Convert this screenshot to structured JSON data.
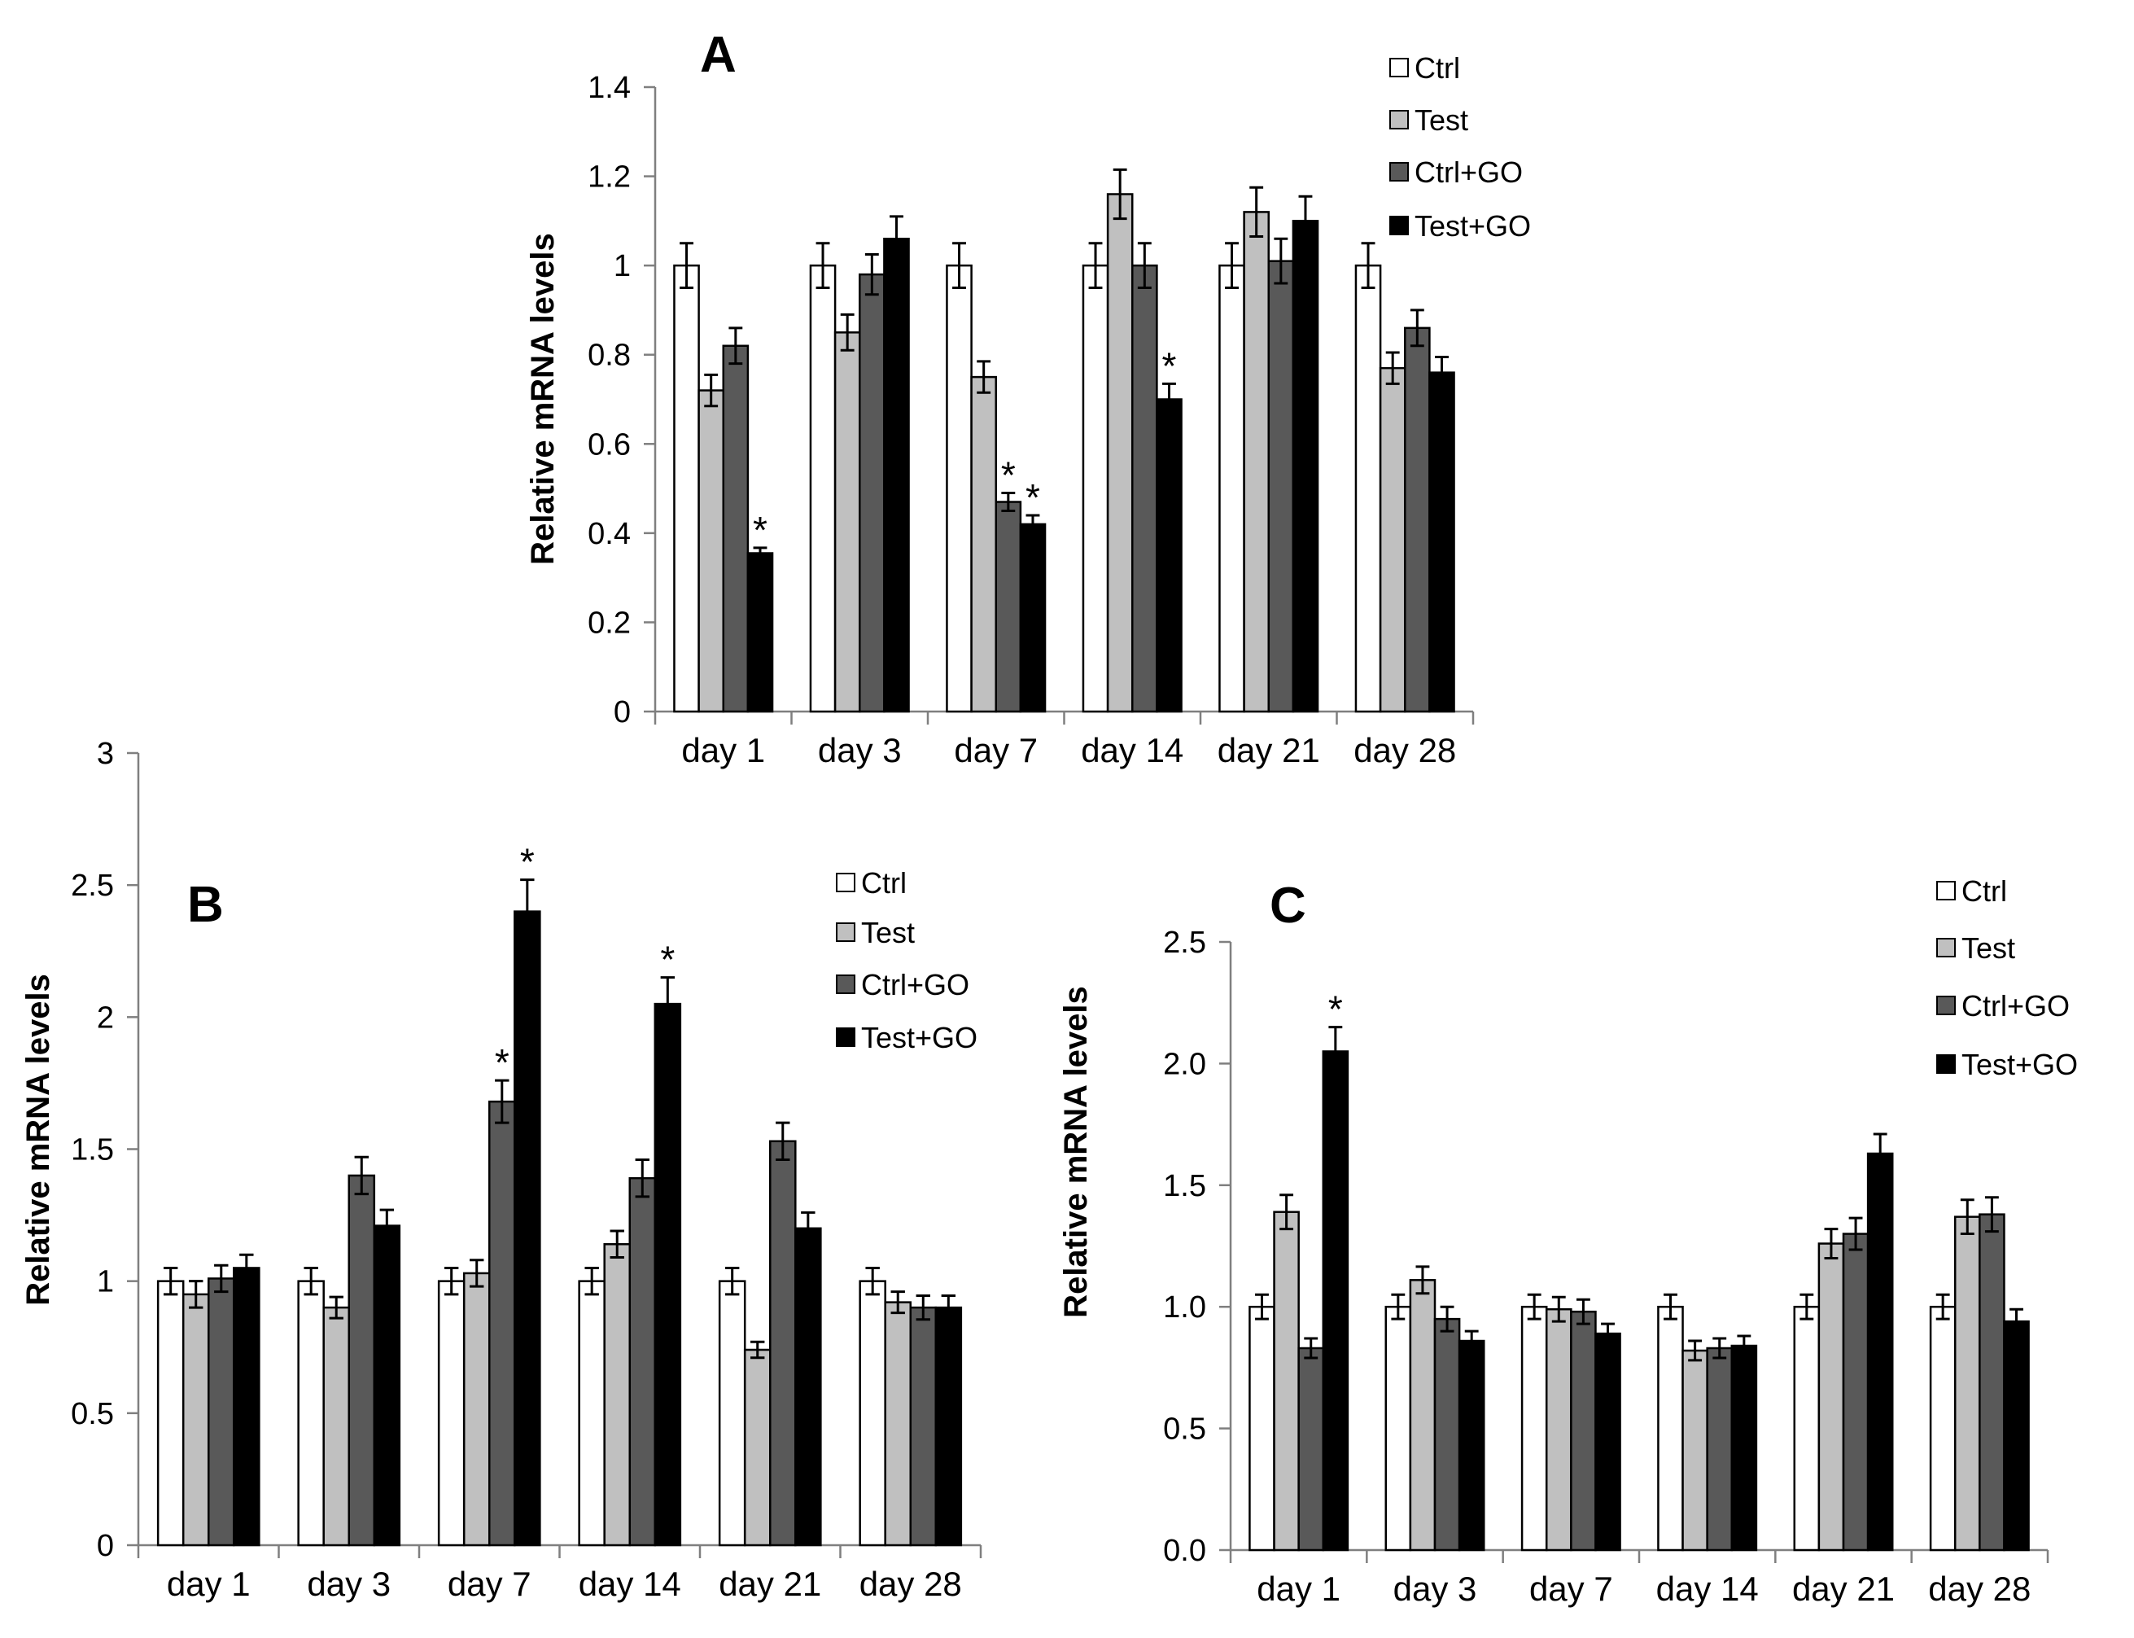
{
  "chart_data": [
    {
      "type": "bar",
      "panel": "A",
      "title": "A",
      "xlabel": "",
      "ylabel": "Relative mRNA levels",
      "ylim": [
        0,
        1.4
      ],
      "yticks": [
        "0",
        "0.2",
        "0.4",
        "0.6",
        "0.8",
        "1",
        "1.2",
        "1.4"
      ],
      "categories": [
        "day 1",
        "day 3",
        "day 7",
        "day 14",
        "day 21",
        "day 28"
      ],
      "legend": [
        "Ctrl",
        "Test",
        "Ctrl+GO",
        "Test+GO"
      ],
      "legend_position": "top-right",
      "series": [
        {
          "name": "Ctrl",
          "color": "#ffffff",
          "values": [
            1.0,
            1.0,
            1.0,
            1.0,
            1.0,
            1.0
          ],
          "errors": [
            0.05,
            0.05,
            0.05,
            0.05,
            0.05,
            0.05
          ],
          "stars": [
            false,
            false,
            false,
            false,
            false,
            false
          ]
        },
        {
          "name": "Test",
          "color": "#c0c0c0",
          "values": [
            0.72,
            0.85,
            0.75,
            1.16,
            1.12,
            0.77
          ],
          "errors": [
            0.035,
            0.04,
            0.035,
            0.055,
            0.055,
            0.035
          ],
          "stars": [
            false,
            false,
            false,
            false,
            false,
            false
          ]
        },
        {
          "name": "Ctrl+GO",
          "color": "#595959",
          "values": [
            0.82,
            0.98,
            0.47,
            1.0,
            1.01,
            0.86
          ],
          "errors": [
            0.04,
            0.045,
            0.02,
            0.05,
            0.05,
            0.04
          ],
          "stars": [
            false,
            false,
            true,
            false,
            false,
            false
          ]
        },
        {
          "name": "Test+GO",
          "color": "#000000",
          "values": [
            0.355,
            1.06,
            0.42,
            0.7,
            1.1,
            0.76
          ],
          "errors": [
            0.012,
            0.05,
            0.02,
            0.035,
            0.055,
            0.035
          ],
          "stars": [
            true,
            false,
            true,
            true,
            false,
            false
          ]
        }
      ],
      "star_symbol": "*"
    },
    {
      "type": "bar",
      "panel": "B",
      "title": "B",
      "xlabel": "",
      "ylabel": "Relative mRNA levels",
      "ylim": [
        0,
        3
      ],
      "yticks": [
        "0",
        "0.5",
        "1",
        "1.5",
        "2",
        "2.5",
        "3"
      ],
      "categories": [
        "day 1",
        "day 3",
        "day 7",
        "day 14",
        "day 21",
        "day 28"
      ],
      "legend": [
        "Ctrl",
        "Test",
        "Ctrl+GO",
        "Test+GO"
      ],
      "legend_position": "top-right",
      "series": [
        {
          "name": "Ctrl",
          "color": "#ffffff",
          "values": [
            1.0,
            1.0,
            1.0,
            1.0,
            1.0,
            1.0
          ],
          "errors": [
            0.05,
            0.05,
            0.05,
            0.05,
            0.05,
            0.05
          ],
          "stars": [
            false,
            false,
            false,
            false,
            false,
            false
          ]
        },
        {
          "name": "Test",
          "color": "#c0c0c0",
          "values": [
            0.95,
            0.9,
            1.03,
            1.14,
            0.74,
            0.92
          ],
          "errors": [
            0.05,
            0.04,
            0.05,
            0.05,
            0.03,
            0.04
          ],
          "stars": [
            false,
            false,
            false,
            false,
            false,
            false
          ]
        },
        {
          "name": "Ctrl+GO",
          "color": "#595959",
          "values": [
            1.01,
            1.4,
            1.68,
            1.39,
            1.53,
            0.9
          ],
          "errors": [
            0.05,
            0.07,
            0.08,
            0.07,
            0.07,
            0.045
          ],
          "stars": [
            false,
            false,
            true,
            false,
            false,
            false
          ]
        },
        {
          "name": "Test+GO",
          "color": "#000000",
          "values": [
            1.05,
            1.21,
            2.4,
            2.05,
            1.2,
            0.9
          ],
          "errors": [
            0.05,
            0.06,
            0.12,
            0.1,
            0.06,
            0.045
          ],
          "stars": [
            false,
            false,
            true,
            true,
            false,
            false
          ]
        }
      ],
      "star_symbol": "*"
    },
    {
      "type": "bar",
      "panel": "C",
      "title": "C",
      "xlabel": "",
      "ylabel": "Relative mRNA levels",
      "ylim": [
        0,
        2.5
      ],
      "yticks": [
        "0.0",
        "0.5",
        "1.0",
        "1.5",
        "2.0",
        "2.5"
      ],
      "categories": [
        "day 1",
        "day 3",
        "day 7",
        "day 14",
        "day 21",
        "day 28"
      ],
      "legend": [
        "Ctrl",
        "Test",
        "Ctrl+GO",
        "Test+GO"
      ],
      "legend_position": "top-right",
      "series": [
        {
          "name": "Ctrl",
          "color": "#ffffff",
          "values": [
            1.0,
            1.0,
            1.0,
            1.0,
            1.0,
            1.0
          ],
          "errors": [
            0.05,
            0.05,
            0.05,
            0.05,
            0.05,
            0.05
          ],
          "stars": [
            false,
            false,
            false,
            false,
            false,
            false
          ]
        },
        {
          "name": "Test",
          "color": "#c0c0c0",
          "values": [
            1.39,
            1.11,
            0.99,
            0.82,
            1.26,
            1.37
          ],
          "errors": [
            0.07,
            0.055,
            0.05,
            0.04,
            0.06,
            0.07
          ],
          "stars": [
            false,
            false,
            false,
            false,
            false,
            false
          ]
        },
        {
          "name": "Ctrl+GO",
          "color": "#595959",
          "values": [
            0.83,
            0.95,
            0.98,
            0.83,
            1.3,
            1.38
          ],
          "errors": [
            0.04,
            0.05,
            0.05,
            0.04,
            0.065,
            0.07
          ],
          "stars": [
            false,
            false,
            false,
            false,
            false,
            false
          ]
        },
        {
          "name": "Test+GO",
          "color": "#000000",
          "values": [
            2.05,
            0.86,
            0.89,
            0.84,
            1.63,
            0.94
          ],
          "errors": [
            0.1,
            0.04,
            0.04,
            0.04,
            0.08,
            0.05
          ],
          "stars": [
            true,
            false,
            false,
            false,
            false,
            false
          ]
        }
      ],
      "star_symbol": "*"
    }
  ]
}
